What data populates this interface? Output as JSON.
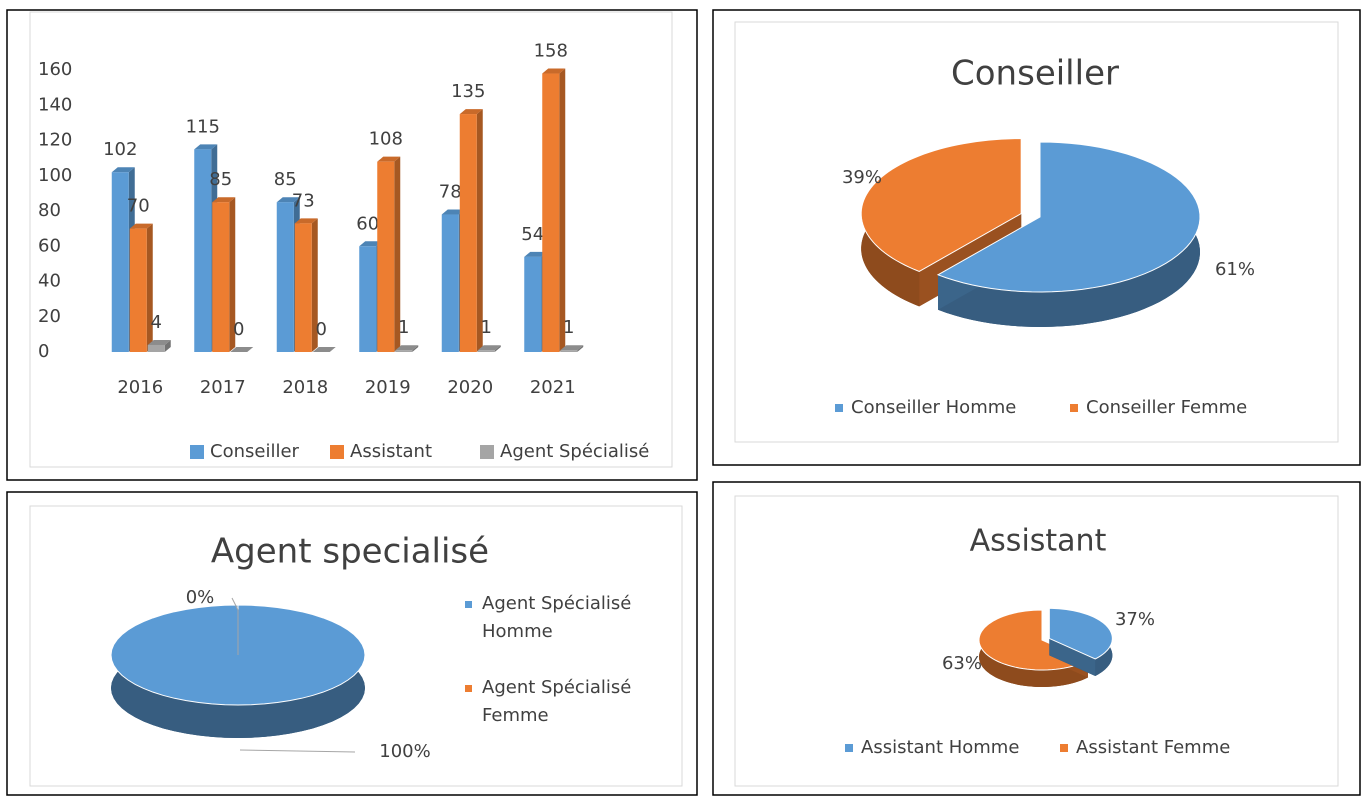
{
  "chart_data": [
    {
      "type": "bar",
      "categories": [
        "2016",
        "2017",
        "2018",
        "2019",
        "2020",
        "2021"
      ],
      "series": [
        {
          "name": "Conseiller",
          "color": "#5b9bd5",
          "values": [
            102,
            115,
            85,
            60,
            78,
            54
          ]
        },
        {
          "name": "Assistant",
          "color": "#ed7d31",
          "values": [
            70,
            85,
            73,
            108,
            135,
            158
          ]
        },
        {
          "name": "Agent Spécialisé",
          "color": "#a5a5a5",
          "values": [
            4,
            0,
            0,
            1,
            1,
            1
          ]
        }
      ],
      "ylim": [
        0,
        160
      ],
      "yticks": [
        0,
        20,
        40,
        60,
        80,
        100,
        120,
        140,
        160
      ],
      "grid": false,
      "legend": "bottom"
    },
    {
      "type": "pie",
      "title": "Conseiller",
      "categories": [
        "Conseiller Homme",
        "Conseiller Femme"
      ],
      "colors": [
        "#5b9bd5",
        "#ed7d31"
      ],
      "values": [
        61,
        39
      ],
      "value_labels": [
        "61%",
        "39%"
      ],
      "legend": "bottom"
    },
    {
      "type": "pie",
      "title": "Agent specialisé",
      "categories": [
        "Agent Spécialisé Homme",
        "Agent Spécialisé Femme"
      ],
      "colors": [
        "#5b9bd5",
        "#ed7d31"
      ],
      "values": [
        100,
        0
      ],
      "value_labels": [
        "100%",
        "0%"
      ],
      "legend": "right"
    },
    {
      "type": "pie",
      "title": "Assistant",
      "categories": [
        "Assistant Homme",
        "Assistant Femme"
      ],
      "colors": [
        "#5b9bd5",
        "#ed7d31"
      ],
      "values": [
        37,
        63
      ],
      "value_labels": [
        "37%",
        "63%"
      ],
      "legend": "bottom"
    }
  ]
}
